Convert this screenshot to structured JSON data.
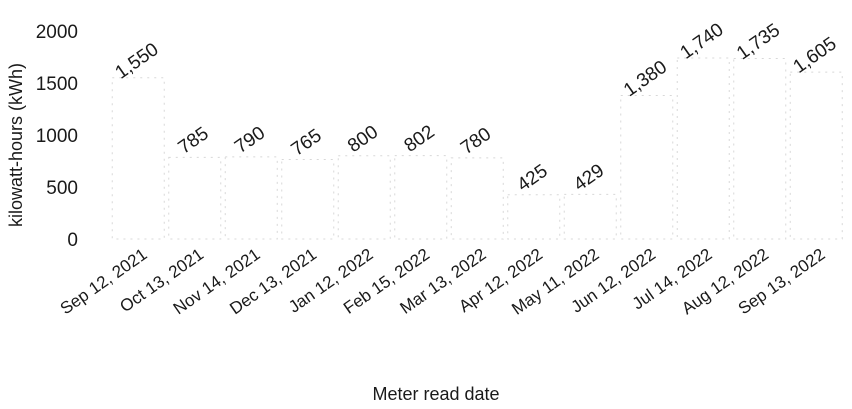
{
  "chart_data": {
    "type": "bar",
    "xlabel": "Meter read date",
    "ylabel": "kilowatt-hours (kWh)",
    "categories": [
      "Sep 12, 2021",
      "Oct 13, 2021",
      "Nov 14, 2021",
      "Dec 13, 2021",
      "Jan 12, 2022",
      "Feb 15, 2022",
      "Mar 13, 2022",
      "Apr 12, 2022",
      "May 11, 2022",
      "Jun 12, 2022",
      "Jul 14, 2022",
      "Aug 12, 2022",
      "Sep 13, 2022"
    ],
    "values": [
      1550,
      785,
      790,
      765,
      800,
      802,
      780,
      425,
      429,
      1380,
      1740,
      1735,
      1605
    ],
    "data_labels": [
      "1,550",
      "785",
      "790",
      "765",
      "800",
      "802",
      "780",
      "425",
      "429",
      "1,380",
      "1,740",
      "1,735",
      "1,605"
    ],
    "yticks": [
      0,
      500,
      1000,
      1500,
      2000
    ],
    "ytick_labels": [
      "0",
      "500",
      "1000",
      "1500",
      "2000"
    ],
    "ylim": [
      0,
      2000
    ],
    "grid": false,
    "legend": "none"
  }
}
